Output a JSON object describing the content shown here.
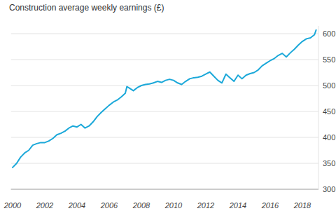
{
  "chart_data": {
    "type": "line",
    "title": "Construction average weekly earnings (£)",
    "x": [
      2000.0,
      2000.25,
      2000.5,
      2000.75,
      2001.0,
      2001.25,
      2001.5,
      2001.75,
      2002.0,
      2002.25,
      2002.5,
      2002.75,
      2003.0,
      2003.25,
      2003.5,
      2003.75,
      2004.0,
      2004.25,
      2004.5,
      2004.75,
      2005.0,
      2005.25,
      2005.5,
      2005.75,
      2006.0,
      2006.25,
      2006.5,
      2006.75,
      2007.0,
      2007.1,
      2007.25,
      2007.5,
      2007.75,
      2008.0,
      2008.25,
      2008.5,
      2008.75,
      2009.0,
      2009.25,
      2009.5,
      2009.75,
      2010.0,
      2010.25,
      2010.5,
      2010.75,
      2011.0,
      2011.25,
      2011.5,
      2011.75,
      2012.0,
      2012.25,
      2012.5,
      2012.75,
      2013.0,
      2013.25,
      2013.5,
      2013.75,
      2014.0,
      2014.25,
      2014.5,
      2014.75,
      2015.0,
      2015.25,
      2015.5,
      2015.75,
      2016.0,
      2016.25,
      2016.5,
      2016.75,
      2017.0,
      2017.25,
      2017.5,
      2017.75,
      2018.0,
      2018.25,
      2018.5,
      2018.75,
      2018.85
    ],
    "values": [
      342,
      350,
      362,
      370,
      375,
      385,
      388,
      390,
      390,
      393,
      398,
      405,
      408,
      412,
      418,
      422,
      420,
      425,
      418,
      422,
      430,
      440,
      448,
      455,
      462,
      468,
      472,
      478,
      485,
      498,
      495,
      490,
      496,
      500,
      502,
      503,
      505,
      508,
      506,
      510,
      512,
      510,
      505,
      502,
      508,
      513,
      515,
      516,
      518,
      522,
      526,
      518,
      510,
      505,
      522,
      515,
      508,
      520,
      513,
      520,
      523,
      525,
      530,
      538,
      543,
      548,
      552,
      558,
      562,
      555,
      563,
      570,
      578,
      585,
      590,
      592,
      598,
      607
    ],
    "color": "#1ba8d9",
    "xlim": [
      1999.9,
      2019
    ],
    "xticks": [
      2000,
      2002,
      2004,
      2006,
      2008,
      2010,
      2012,
      2014,
      2016,
      2018
    ],
    "ylim": [
      300,
      615
    ],
    "yticks": [
      300,
      350,
      400,
      450,
      500,
      550,
      600
    ],
    "grid": true
  }
}
